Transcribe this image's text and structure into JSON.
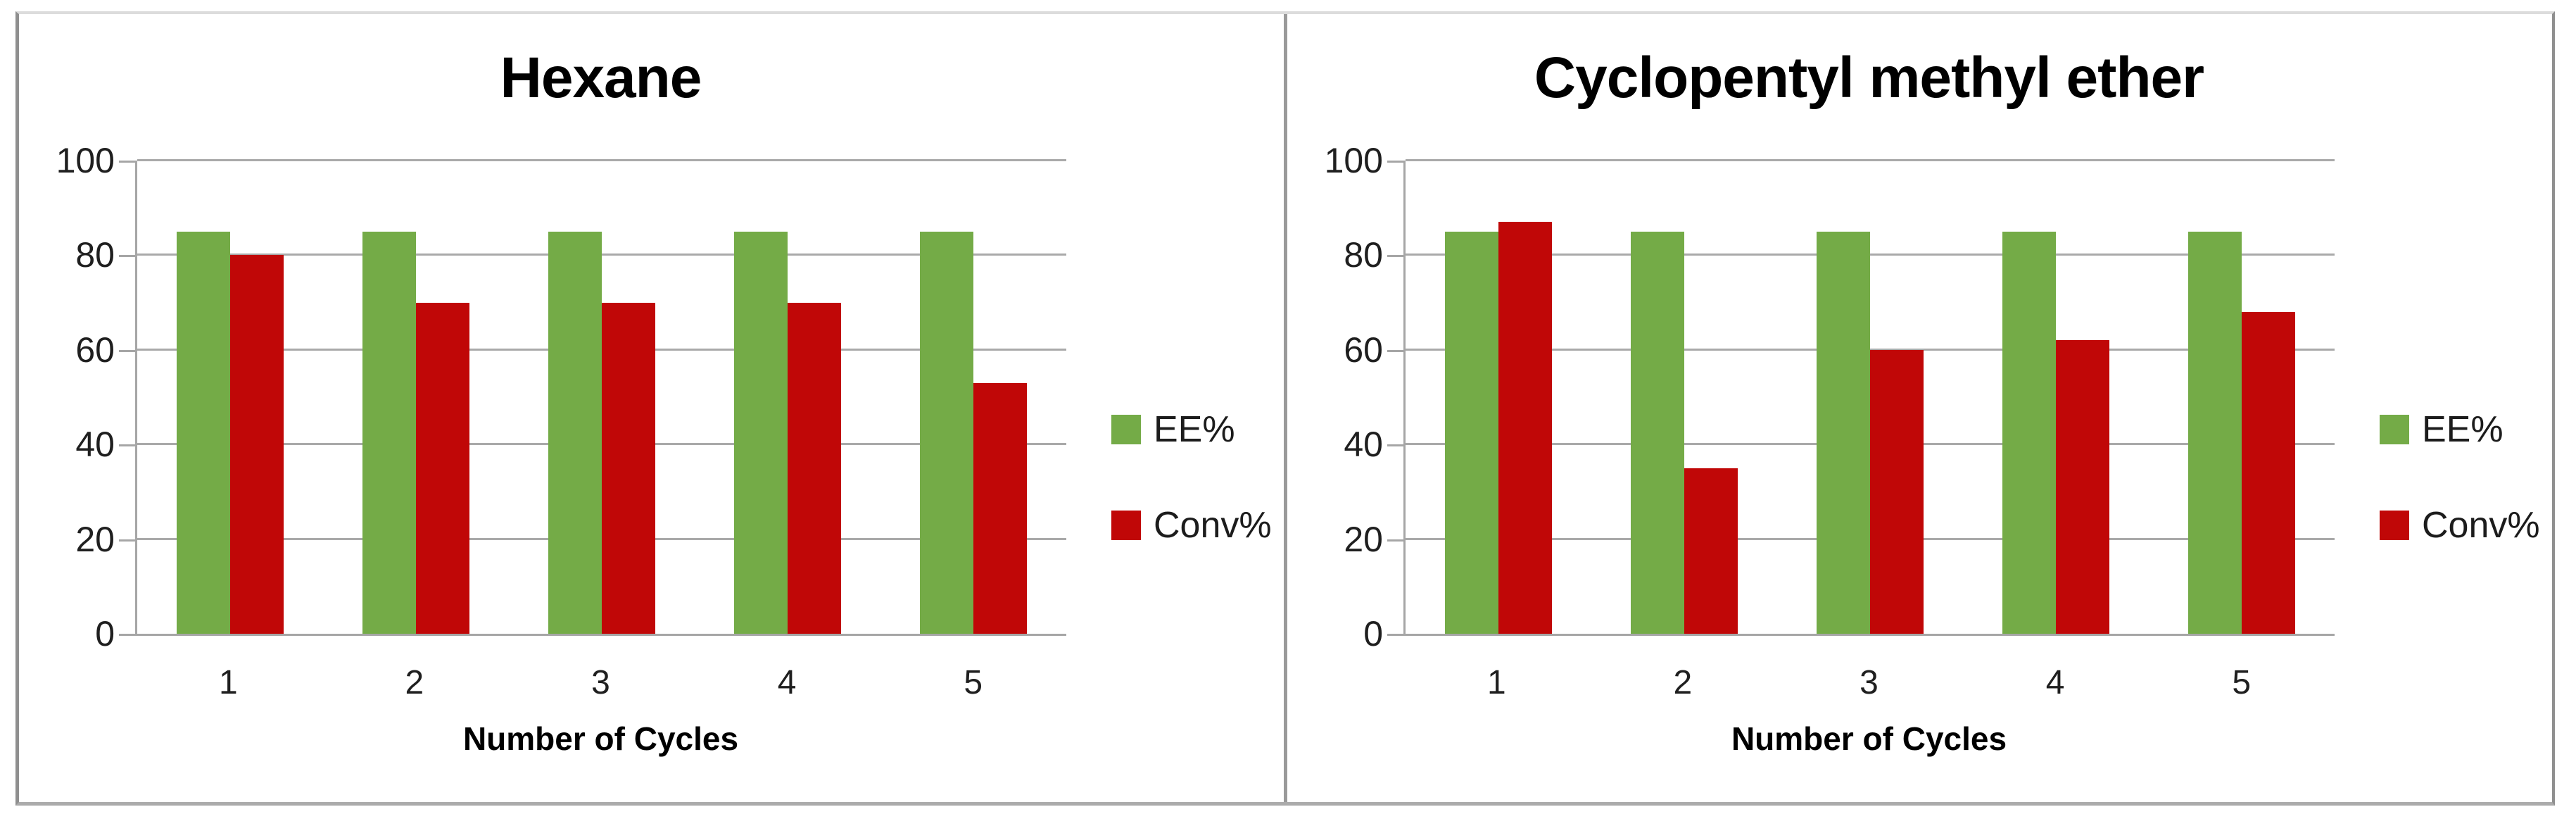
{
  "figure": {
    "background": "#ffffff",
    "border_color": "#9a9a9a",
    "gridline_color": "#a9a9a9",
    "axis_color": "#a6a6a6"
  },
  "chart_data": [
    {
      "type": "bar",
      "title": "Hexane",
      "xlabel": "Number of Cycles",
      "ylabel": "",
      "categories": [
        "1",
        "2",
        "3",
        "4",
        "5"
      ],
      "series": [
        {
          "name": "EE%",
          "color": "#74ab47",
          "values": [
            85,
            85,
            85,
            85,
            85
          ]
        },
        {
          "name": "Conv%",
          "color": "#c00707",
          "values": [
            80,
            70,
            70,
            70,
            53
          ]
        }
      ],
      "ylim": [
        0,
        100
      ],
      "yticks": [
        0,
        20,
        40,
        60,
        80,
        100
      ],
      "grid": true,
      "legend_position": "right"
    },
    {
      "type": "bar",
      "title": "Cyclopentyl methyl ether",
      "xlabel": "Number of Cycles",
      "ylabel": "",
      "categories": [
        "1",
        "2",
        "3",
        "4",
        "5"
      ],
      "series": [
        {
          "name": "EE%",
          "color": "#74ab47",
          "values": [
            85,
            85,
            85,
            85,
            85
          ]
        },
        {
          "name": "Conv%",
          "color": "#c00707",
          "values": [
            87,
            35,
            60,
            62,
            68
          ]
        }
      ],
      "ylim": [
        0,
        100
      ],
      "yticks": [
        0,
        20,
        40,
        60,
        80,
        100
      ],
      "grid": true,
      "legend_position": "right"
    }
  ]
}
